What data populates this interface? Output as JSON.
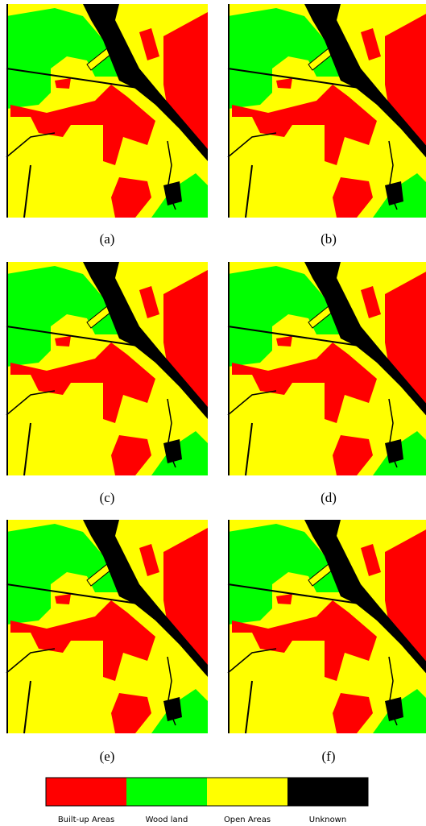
{
  "panels": [
    {
      "caption": "(a)"
    },
    {
      "caption": "(b)"
    },
    {
      "caption": "(c)"
    },
    {
      "caption": "(d)"
    },
    {
      "caption": "(e)"
    },
    {
      "caption": "(f)"
    }
  ],
  "legend": [
    {
      "label": "Built-up Areas",
      "color": "#ff0000"
    },
    {
      "label": "Wood land",
      "color": "#00ff00"
    },
    {
      "label": "Open Areas",
      "color": "#ffff00"
    },
    {
      "label": "Unknown",
      "color": "#000000"
    }
  ]
}
